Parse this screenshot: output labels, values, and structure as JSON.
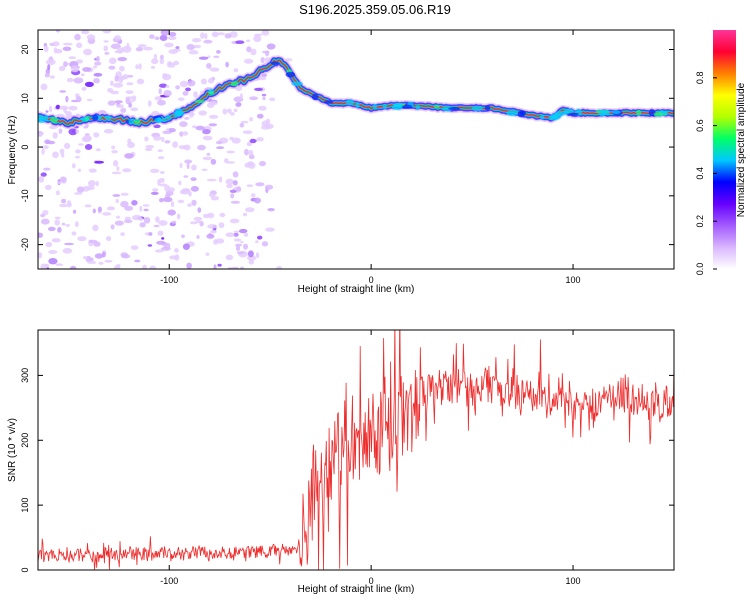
{
  "figure": {
    "title": "S196.2025.359.05.06.R19"
  },
  "colors": {
    "snr_line": "#ee2c2c",
    "ridge": "#e8163a",
    "colormap": [
      "#ffffff",
      "#d9b6ff",
      "#a35bff",
      "#6600ff",
      "#0000ff",
      "#00c8ff",
      "#00ff66",
      "#b4ff00",
      "#ffff00",
      "#ff8000",
      "#ff0033",
      "#ff3399"
    ]
  },
  "chart_data": [
    {
      "type": "heatmap",
      "title": "S196.2025.359.05.06.R19",
      "xlabel": "Height of straight line (km)",
      "ylabel": "Frequency (Hz)",
      "xlim": [
        -165,
        150
      ],
      "ylim": [
        -25,
        24
      ],
      "xticks": [
        -100,
        0,
        100
      ],
      "yticks": [
        -20,
        -10,
        0,
        10,
        20
      ],
      "colorbar": {
        "label": "Normalized spectral amplitude",
        "range": [
          0,
          1
        ],
        "ticks": [
          0.0,
          0.2,
          0.4,
          0.6,
          0.8
        ]
      },
      "ridge": {
        "x": [
          -165,
          -150,
          -140,
          -130,
          -115,
          -100,
          -90,
          -80,
          -70,
          -60,
          -50,
          -45,
          -40,
          -35,
          -30,
          -20,
          -10,
          0,
          10,
          20,
          40,
          60,
          80,
          90,
          95,
          100,
          120,
          150
        ],
        "y": [
          6,
          5,
          6,
          6,
          5,
          6,
          8,
          11,
          13,
          14,
          17,
          18,
          15,
          12,
          11,
          9,
          9,
          8,
          8.5,
          8.5,
          8,
          8,
          6.5,
          6,
          7.5,
          7,
          7,
          7
        ]
      },
      "noise_extent_x": [
        -165,
        -50
      ],
      "grid": false,
      "legend": "none"
    },
    {
      "type": "line",
      "xlabel": "Height of straight line (km)",
      "ylabel": "SNR (10 * v/v)",
      "xlim": [
        -165,
        150
      ],
      "ylim": [
        0,
        370
      ],
      "xticks": [
        -100,
        0,
        100
      ],
      "yticks": [
        0,
        100,
        200,
        300
      ],
      "series": [
        {
          "x": [
            -165,
            -140,
            -110,
            -80,
            -60,
            -40,
            -36,
            -33,
            -30,
            -25,
            -20,
            -15,
            -10,
            -5,
            0,
            5,
            10,
            15,
            20,
            25,
            30,
            40,
            50,
            60,
            70,
            80,
            90,
            100,
            110,
            120,
            130,
            140,
            150
          ],
          "y": [
            20,
            22,
            24,
            26,
            28,
            30,
            35,
            45,
            110,
            150,
            170,
            180,
            190,
            195,
            200,
            205,
            220,
            230,
            250,
            270,
            280,
            285,
            285,
            280,
            275,
            272,
            268,
            265,
            262,
            260,
            258,
            257,
            256
          ]
        }
      ],
      "grid": false,
      "legend": "none"
    }
  ]
}
